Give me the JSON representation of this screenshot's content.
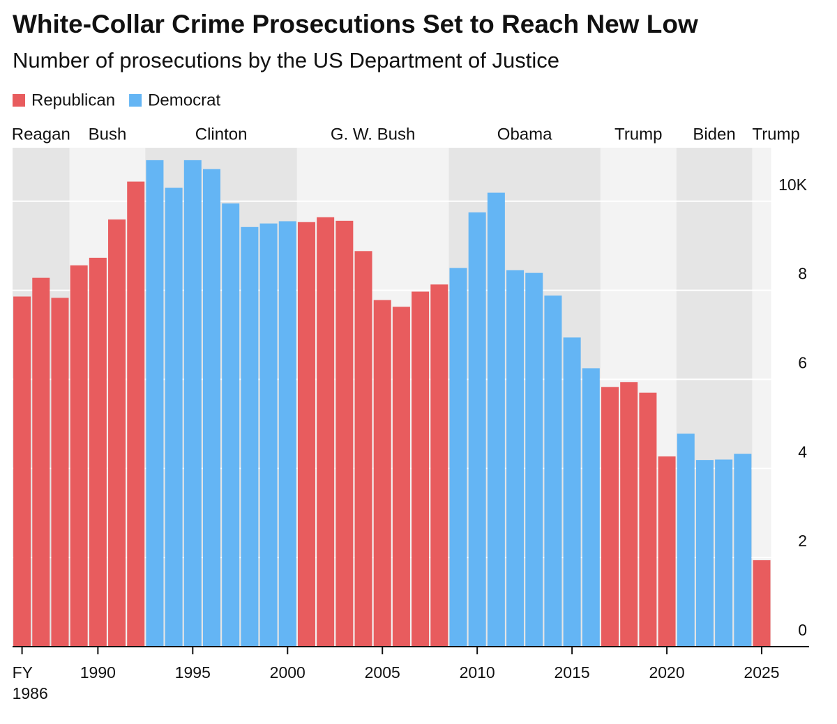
{
  "chart_data": {
    "type": "bar",
    "title": "White-Collar Crime Prosecutions Set to Reach New Low",
    "subtitle": "Number of prosecutions by the US Department of Justice",
    "x": [
      1986,
      1987,
      1988,
      1989,
      1990,
      1991,
      1992,
      1993,
      1994,
      1995,
      1996,
      1997,
      1998,
      1999,
      2000,
      2001,
      2002,
      2003,
      2004,
      2005,
      2006,
      2007,
      2008,
      2009,
      2010,
      2011,
      2012,
      2013,
      2014,
      2015,
      2016,
      2017,
      2018,
      2019,
      2020,
      2021,
      2022,
      2023,
      2024,
      2025
    ],
    "series": [
      {
        "name": "Republican",
        "color": "#e85c5e",
        "values": [
          7.86,
          8.28,
          7.83,
          8.56,
          8.73,
          9.59,
          10.44,
          null,
          null,
          null,
          null,
          null,
          null,
          null,
          null,
          9.53,
          9.64,
          9.56,
          8.88,
          7.78,
          7.63,
          7.97,
          8.13,
          null,
          null,
          null,
          null,
          null,
          null,
          null,
          null,
          5.83,
          5.94,
          5.7,
          4.27,
          null,
          null,
          null,
          null,
          1.94
        ]
      },
      {
        "name": "Democrat",
        "color": "#64b5f4",
        "values": [
          null,
          null,
          null,
          null,
          null,
          null,
          null,
          10.92,
          10.3,
          10.92,
          10.72,
          9.95,
          9.42,
          9.5,
          9.55,
          null,
          null,
          null,
          null,
          null,
          null,
          null,
          null,
          8.5,
          9.75,
          10.19,
          8.45,
          8.39,
          7.88,
          6.94,
          6.25,
          null,
          null,
          null,
          null,
          4.78,
          4.19,
          4.2,
          4.33,
          null
        ]
      }
    ],
    "eras": [
      {
        "name": "Reagan",
        "from": 1986,
        "to": 1988,
        "color": "#e5e5e5"
      },
      {
        "name": "Bush",
        "from": 1989,
        "to": 1992,
        "color": "#f3f3f3"
      },
      {
        "name": "Clinton",
        "from": 1993,
        "to": 2000,
        "color": "#e5e5e5"
      },
      {
        "name": "G. W. Bush",
        "from": 2001,
        "to": 2008,
        "color": "#f3f3f3"
      },
      {
        "name": "Obama",
        "from": 2009,
        "to": 2016,
        "color": "#e5e5e5"
      },
      {
        "name": "Trump",
        "from": 2017,
        "to": 2020,
        "color": "#f3f3f3"
      },
      {
        "name": "Biden",
        "from": 2021,
        "to": 2024,
        "color": "#e5e5e5"
      },
      {
        "name": "Trump",
        "from": 2025,
        "to": 2025,
        "color": "#f3f3f3"
      }
    ],
    "xlim": [
      1985.5,
      2027.5
    ],
    "xticks": [
      {
        "value": 1986,
        "label": "FY 1986"
      },
      1990,
      1995,
      2000,
      2005,
      2010,
      2015,
      2020,
      2025
    ],
    "ylim": [
      0,
      11.2
    ],
    "yticks": [
      0,
      2,
      4,
      6,
      8,
      {
        "value": 10,
        "label": "10K"
      }
    ],
    "grid": true
  }
}
